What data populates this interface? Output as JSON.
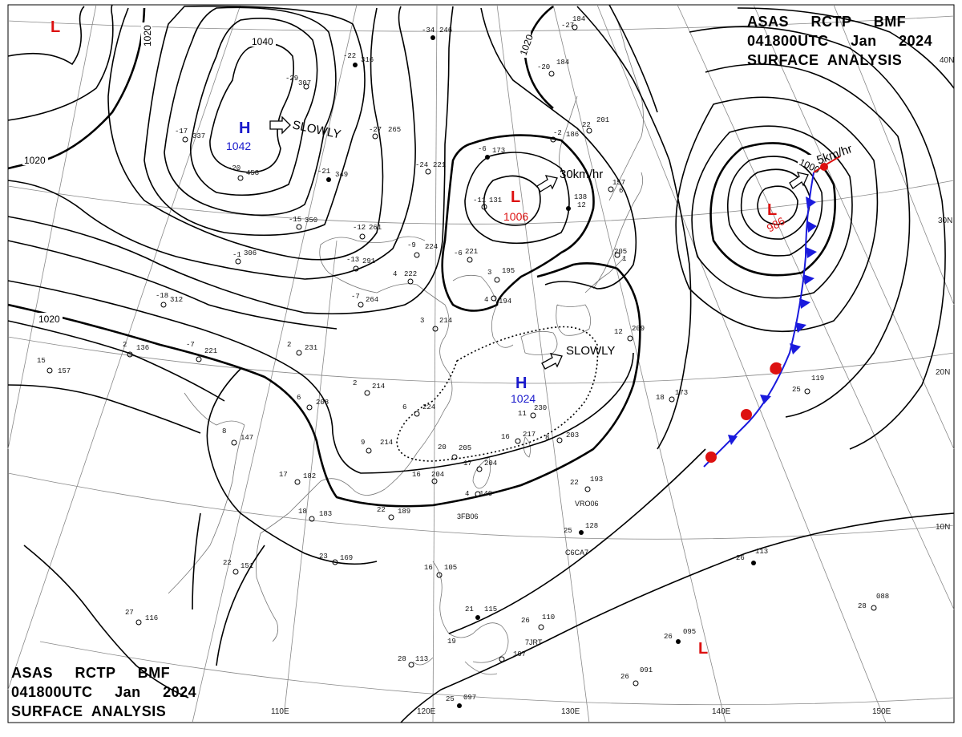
{
  "title": {
    "line1": "ASAS     RCTP     BMF",
    "line2": "041800UTC     Jan     2024",
    "line3": "SURFACE  ANALYSIS"
  },
  "latitude_labels": [
    "40N",
    "30N",
    "20N",
    "10N"
  ],
  "longitude_labels": [
    "110E",
    "120E",
    "130E",
    "140E",
    "150E"
  ],
  "isobar_labels": [
    "1040",
    "1020",
    "1020",
    "1020",
    "1020",
    "1000"
  ],
  "pressure_centers": [
    {
      "type": "H",
      "value": "1042",
      "color": "#1a1acc"
    },
    {
      "type": "H",
      "value": "1024",
      "color": "#1a1acc"
    },
    {
      "type": "L",
      "value": "1006",
      "color": "#dd1111"
    },
    {
      "type": "L",
      "value": "986",
      "color": "#dd1111"
    },
    {
      "type": "L",
      "value": "",
      "color": "#dd1111"
    },
    {
      "type": "L",
      "value": "",
      "color": "#dd1111"
    }
  ],
  "movements": [
    "SLOWLY",
    "30km/hr",
    "SLOWLY",
    "5km/hr"
  ],
  "ship_codes": [
    "3FB06",
    "VRO06",
    "C6CA7",
    "7JRT"
  ],
  "stations": [
    {
      "temp": "-29",
      "press": "307"
    },
    {
      "temp": "-22",
      "press": "316"
    },
    {
      "temp": "-34",
      "press": "246"
    },
    {
      "temp": "-17",
      "press": "337"
    },
    {
      "temp": "-20",
      "press": "458"
    },
    {
      "temp": "-21",
      "press": "349"
    },
    {
      "temp": "-27",
      "press": "265"
    },
    {
      "temp": "-15",
      "press": "350"
    },
    {
      "temp": "-24",
      "press": "221"
    },
    {
      "temp": "-12",
      "press": "261"
    },
    {
      "temp": "-13",
      "press": "291"
    },
    {
      "temp": "-9",
      "press": "224"
    },
    {
      "temp": "-7",
      "press": "264"
    },
    {
      "temp": "-18",
      "press": "312"
    },
    {
      "temp": "2",
      "press": "136"
    },
    {
      "temp": "-7",
      "press": "221"
    },
    {
      "temp": "15",
      "press": "157"
    },
    {
      "temp": "2",
      "press": "231"
    },
    {
      "temp": "2",
      "press": "214"
    },
    {
      "temp": "6",
      "press": "208"
    },
    {
      "temp": "8",
      "press": "147"
    },
    {
      "temp": "6",
      "press": "224"
    },
    {
      "temp": "9",
      "press": "214"
    },
    {
      "temp": "20",
      "press": "205"
    },
    {
      "temp": "16",
      "press": "204"
    },
    {
      "temp": "17",
      "press": "204"
    },
    {
      "temp": "11",
      "press": "230"
    },
    {
      "temp": "16",
      "press": "217"
    },
    {
      "temp": "8",
      "press": "203"
    },
    {
      "temp": "17",
      "press": "182"
    },
    {
      "temp": "18",
      "press": "183"
    },
    {
      "temp": "22",
      "press": "189"
    },
    {
      "temp": "23",
      "press": "169"
    },
    {
      "temp": "22",
      "press": "151"
    },
    {
      "temp": "27",
      "press": "116"
    },
    {
      "temp": "3",
      "press": "214"
    },
    {
      "temp": "-11",
      "press": "131"
    },
    {
      "temp": "-6",
      "press": "173"
    },
    {
      "temp": "138",
      "press": "12"
    },
    {
      "temp": "-20",
      "press": "184"
    },
    {
      "temp": "-27",
      "press": "184"
    },
    {
      "temp": "22",
      "press": "201"
    },
    {
      "temp": "-2",
      "press": "186"
    },
    {
      "temp": "157",
      "press": "6"
    },
    {
      "temp": "205",
      "press": "1"
    },
    {
      "temp": "12",
      "press": "209"
    },
    {
      "temp": "18",
      "press": "173"
    },
    {
      "temp": "22",
      "press": "193"
    },
    {
      "temp": "25",
      "press": "128"
    },
    {
      "temp": "25",
      "press": "119"
    },
    {
      "temp": "26",
      "press": "113"
    },
    {
      "temp": "28",
      "press": "088"
    },
    {
      "temp": "26",
      "press": "095"
    },
    {
      "temp": "26",
      "press": "091"
    },
    {
      "temp": "26",
      "press": "110"
    },
    {
      "temp": "16",
      "press": "105"
    },
    {
      "temp": "21",
      "press": "115"
    },
    {
      "temp": "19",
      "press": "107"
    },
    {
      "temp": "28",
      "press": "113"
    },
    {
      "temp": "25",
      "press": "097"
    },
    {
      "temp": "-1",
      "press": "306"
    },
    {
      "temp": "4",
      "press": "222"
    },
    {
      "temp": "3",
      "press": "195"
    },
    {
      "temp": "-6",
      "press": "221"
    },
    {
      "temp": "4",
      "press": "194"
    },
    {
      "temp": "4",
      "press": "140"
    }
  ],
  "colors": {
    "high": "#1a1acc",
    "low": "#dd1111",
    "cold_front": "#1a1add",
    "warm_front": "#dd1111",
    "isobar": "#000000",
    "grid": "#888888",
    "coast": "#777777"
  }
}
